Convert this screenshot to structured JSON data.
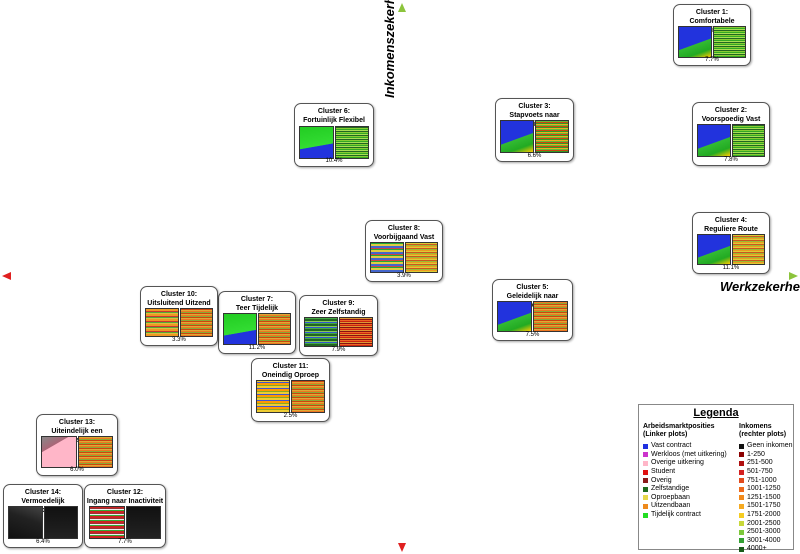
{
  "axes": {
    "y_label": "Inkomenszekerheid",
    "x_label": "Werkzekerheid"
  },
  "clusters": [
    {
      "id": "c1",
      "num": "Cluster 1:",
      "name": "Comfortabele Carrières",
      "pct": "7.7%"
    },
    {
      "id": "c2",
      "num": "Cluster 2:",
      "name": "Voorspoedig Vast",
      "pct": "7.8%"
    },
    {
      "id": "c3",
      "num": "Cluster 3:",
      "name": "Stapvoets naar Stabiliteit",
      "pct": "6.6%"
    },
    {
      "id": "c4",
      "num": "Cluster 4:",
      "name": "Reguliere Route",
      "pct": "11.1%"
    },
    {
      "id": "c5",
      "num": "Cluster 5:",
      "name": "Geleidelijk naar Gemiddeld",
      "pct": "7.5%"
    },
    {
      "id": "c6",
      "num": "Cluster 6:",
      "name": "Fortuinlijk Flexibel",
      "pct": "10.4%"
    },
    {
      "id": "c7",
      "num": "Cluster 7:",
      "name": "Teer Tijdelijk",
      "pct": "11.2%"
    },
    {
      "id": "c8",
      "num": "Cluster 8:",
      "name": "Voorbijgaand Vast",
      "pct": "3.9%"
    },
    {
      "id": "c9",
      "num": "Cluster 9:",
      "name": "Zeer Zelfstandig",
      "pct": "7.9%"
    },
    {
      "id": "c10",
      "num": "Cluster 10:",
      "name": "Uitsluitend Uitzend",
      "pct": "3.3%"
    },
    {
      "id": "c11",
      "num": "Cluster 11:",
      "name": "Oneindig Oproep",
      "pct": "2.5%"
    },
    {
      "id": "c12",
      "num": "Cluster 12:",
      "name": "Ingang naar Inactiviteit",
      "pct": "7.7%"
    },
    {
      "id": "c13",
      "num": "Cluster 13:",
      "name": "Uiteindelijk een Uitkering",
      "pct": "6.0%"
    },
    {
      "id": "c14",
      "num": "Cluster 14:",
      "name": "Vermoedelijk Vertrokken",
      "pct": "6.4%"
    }
  ],
  "legend": {
    "title": "Legenda",
    "left_head_1": "Arbeidsmarktposities",
    "left_head_2": "(Linker plots)",
    "right_head_1": "Inkomens",
    "right_head_2": "(rechter plots)",
    "left_items": [
      {
        "label": "Vast contract",
        "color": "#1f2fe0"
      },
      {
        "label": "Werkloos (met uitkering)",
        "color": "#cc33cc"
      },
      {
        "label": "Overige uitkering",
        "color": "#ffb6c8"
      },
      {
        "label": "Student",
        "color": "#e01010"
      },
      {
        "label": "Overig",
        "color": "#8b1a1a"
      },
      {
        "label": "Zelfstandige",
        "color": "#1e6b1e"
      },
      {
        "label": "Oproepbaan",
        "color": "#e6d84a"
      },
      {
        "label": "Uitzendbaan",
        "color": "#ee8a1c"
      },
      {
        "label": "Tijdelijk contract",
        "color": "#22dd22"
      }
    ],
    "right_items": [
      {
        "label": "Geen inkomen",
        "color": "#111111"
      },
      {
        "label": "1-250",
        "color": "#8b0000"
      },
      {
        "label": "251-500",
        "color": "#b01010"
      },
      {
        "label": "501-750",
        "color": "#d42020"
      },
      {
        "label": "751-1000",
        "color": "#e24a1c"
      },
      {
        "label": "1001-1250",
        "color": "#ee6a1c"
      },
      {
        "label": "1251-1500",
        "color": "#f28a1c"
      },
      {
        "label": "1501-1750",
        "color": "#f5aa22"
      },
      {
        "label": "1751-2000",
        "color": "#f5cc22"
      },
      {
        "label": "2001-2500",
        "color": "#c8d83a"
      },
      {
        "label": "2501-3000",
        "color": "#7cc83a"
      },
      {
        "label": "3001-4000",
        "color": "#33a033"
      },
      {
        "label": "4000+",
        "color": "#1a5c1a"
      }
    ]
  }
}
